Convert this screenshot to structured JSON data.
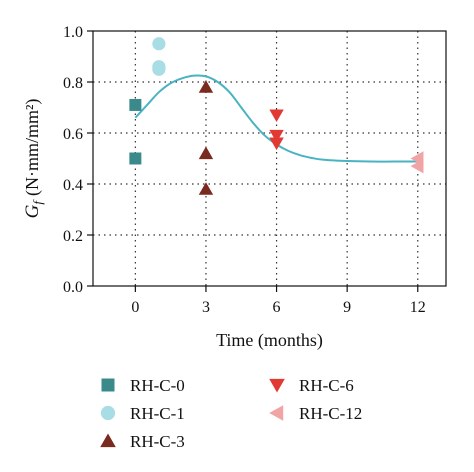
{
  "chart_data": {
    "type": "scatter",
    "xlabel": "Time (months)",
    "ylabel_main": "G",
    "ylabel_sub": "f",
    "ylabel_unit": "(N·mm/mm²)",
    "xlim": [
      -1.8,
      13.2
    ],
    "ylim": [
      0.0,
      1.0
    ],
    "xticks": [
      0,
      3,
      6,
      9,
      12
    ],
    "xtick_labels": [
      "0",
      "3",
      "6",
      "9",
      "12"
    ],
    "yticks": [
      0.0,
      0.2,
      0.4,
      0.6,
      0.8,
      1.0
    ],
    "ytick_labels": [
      "0.0",
      "0.2",
      "0.4",
      "0.6",
      "0.8",
      "1.0"
    ],
    "grid": "dotted, at x and y ticks",
    "legend_position": "bottom",
    "series": [
      {
        "name": "RH-C-0",
        "marker": "square",
        "color": "#3a8a8c",
        "points": [
          [
            0,
            0.71
          ],
          [
            0,
            0.5
          ]
        ]
      },
      {
        "name": "RH-C-1",
        "marker": "circle",
        "color": "#a9dde6",
        "points": [
          [
            1,
            0.95
          ],
          [
            1,
            0.86
          ],
          [
            1,
            0.85
          ]
        ]
      },
      {
        "name": "RH-C-3",
        "marker": "triangle-up",
        "color": "#7a2a1f",
        "points": [
          [
            3,
            0.78
          ],
          [
            3,
            0.52
          ],
          [
            3,
            0.38
          ]
        ]
      },
      {
        "name": "RH-C-6",
        "marker": "triangle-down",
        "color": "#e03a33",
        "points": [
          [
            6,
            0.67
          ],
          [
            6,
            0.59
          ],
          [
            6,
            0.56
          ]
        ]
      },
      {
        "name": "RH-C-12",
        "marker": "triangle-left",
        "color": "#f2a3a6",
        "points": [
          [
            12,
            0.5
          ],
          [
            12,
            0.47
          ]
        ]
      }
    ],
    "fit_curve": {
      "color": "#4ab3c3",
      "points": [
        [
          0,
          0.66
        ],
        [
          0.5,
          0.71
        ],
        [
          1,
          0.76
        ],
        [
          1.5,
          0.795
        ],
        [
          2,
          0.815
        ],
        [
          2.5,
          0.825
        ],
        [
          3,
          0.822
        ],
        [
          3.5,
          0.8
        ],
        [
          4,
          0.76
        ],
        [
          4.5,
          0.7
        ],
        [
          5,
          0.64
        ],
        [
          5.5,
          0.59
        ],
        [
          6,
          0.555
        ],
        [
          6.5,
          0.53
        ],
        [
          7,
          0.513
        ],
        [
          7.5,
          0.502
        ],
        [
          8,
          0.495
        ],
        [
          9,
          0.49
        ],
        [
          10,
          0.488
        ],
        [
          11,
          0.488
        ],
        [
          12,
          0.488
        ]
      ]
    }
  }
}
